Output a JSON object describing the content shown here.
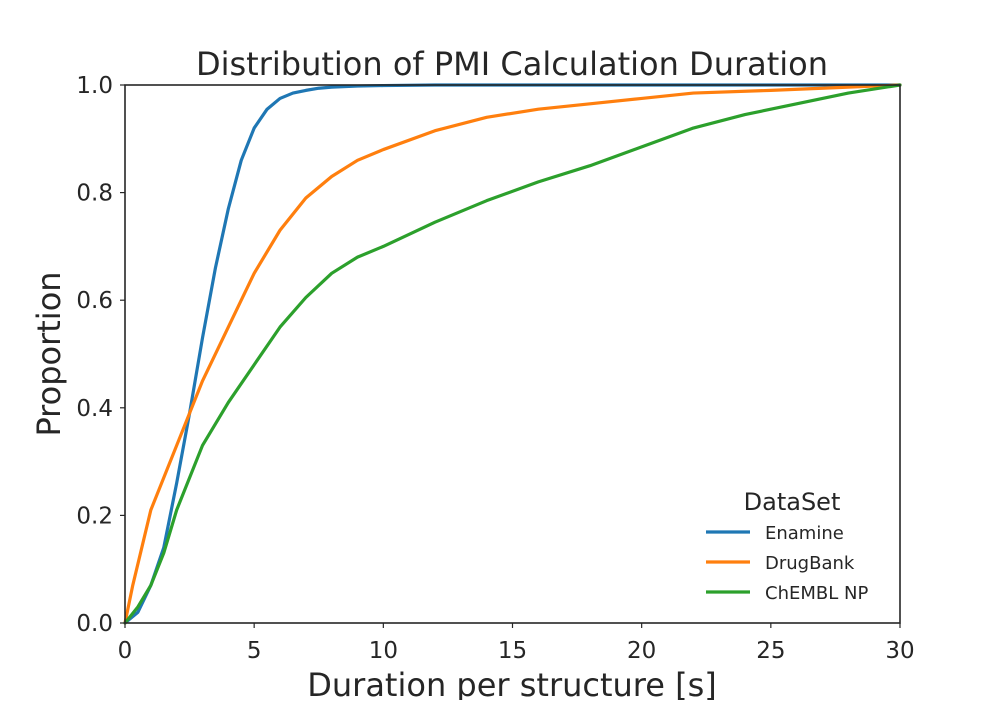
{
  "chart_data": {
    "type": "line",
    "title": "Distribution of PMI Calculation Duration",
    "xlabel": "Duration per structure [s]",
    "ylabel": "Proportion",
    "xlim": [
      0,
      30
    ],
    "ylim": [
      0,
      1
    ],
    "xticks": [
      0,
      5,
      10,
      15,
      20,
      25,
      30
    ],
    "xtick_labels": [
      "0",
      "5",
      "10",
      "15",
      "20",
      "25",
      "30"
    ],
    "yticks": [
      0,
      0.2,
      0.4,
      0.6,
      0.8,
      1.0
    ],
    "ytick_labels": [
      "0.0",
      "0.2",
      "0.4",
      "0.6",
      "0.8",
      "1.0"
    ],
    "grid": false,
    "legend": {
      "title": "DataSet",
      "position": "bottom-right"
    },
    "series": [
      {
        "name": "Enamine",
        "color": "#1f77b4",
        "x": [
          0,
          0.5,
          1.0,
          1.5,
          2.0,
          2.5,
          3.0,
          3.5,
          4.0,
          4.5,
          5.0,
          5.5,
          6.0,
          6.5,
          7.0,
          7.5,
          8.0,
          9.0,
          10.0,
          12.0,
          15.0,
          20.0,
          30.0
        ],
        "y": [
          0,
          0.02,
          0.07,
          0.14,
          0.26,
          0.39,
          0.53,
          0.66,
          0.77,
          0.86,
          0.92,
          0.955,
          0.975,
          0.985,
          0.99,
          0.994,
          0.996,
          0.998,
          0.999,
          1.0,
          1.0,
          1.0,
          1.0
        ]
      },
      {
        "name": "DrugBank",
        "color": "#ff7f0e",
        "x": [
          0,
          0.3,
          1.0,
          2.0,
          3.0,
          4.0,
          5.0,
          6.0,
          7.0,
          8.0,
          9.0,
          10.0,
          12.0,
          14.0,
          16.0,
          18.0,
          20.0,
          22.0,
          25.0,
          28.0,
          30.0
        ],
        "y": [
          0,
          0.07,
          0.21,
          0.33,
          0.45,
          0.55,
          0.65,
          0.73,
          0.79,
          0.83,
          0.86,
          0.88,
          0.915,
          0.94,
          0.955,
          0.965,
          0.975,
          0.985,
          0.99,
          0.996,
          1.0
        ]
      },
      {
        "name": "ChEMBL NP",
        "color": "#2ca02c",
        "x": [
          0,
          0.5,
          1.0,
          1.5,
          2.0,
          3.0,
          4.0,
          5.0,
          6.0,
          7.0,
          8.0,
          9.0,
          10.0,
          12.0,
          14.0,
          16.0,
          18.0,
          20.0,
          22.0,
          24.0,
          26.0,
          28.0,
          30.0
        ],
        "y": [
          0,
          0.03,
          0.07,
          0.13,
          0.21,
          0.33,
          0.41,
          0.48,
          0.55,
          0.605,
          0.65,
          0.68,
          0.7,
          0.745,
          0.785,
          0.82,
          0.85,
          0.885,
          0.92,
          0.945,
          0.965,
          0.985,
          1.0
        ]
      }
    ]
  }
}
